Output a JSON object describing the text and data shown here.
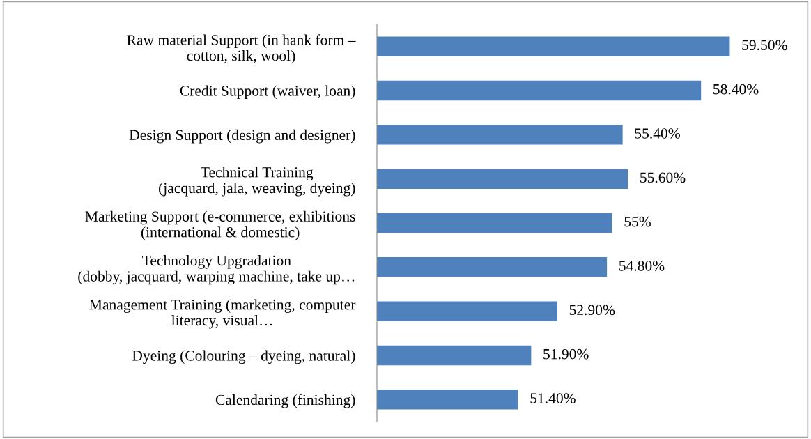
{
  "chart_data": {
    "type": "bar",
    "orientation": "horizontal",
    "categories": [
      "Raw material Support (in hank form –\ncotton, silk, wool)",
      "Credit Support (waiver, loan)",
      "Design Support (design and designer)",
      "Technical Training\n(jacquard, jala, weaving, dyeing)",
      "Marketing Support (e-commerce, exhibitions\n(international & domestic)",
      "Technology Upgradation\n(dobby, jacquard, warping machine, take up…",
      "Management Training (marketing, computer\nliteracy, visual…",
      "Dyeing (Colouring – dyeing, natural)",
      "Calendaring (finishing)"
    ],
    "values": [
      59.5,
      58.4,
      55.4,
      55.6,
      55,
      54.8,
      52.9,
      51.9,
      51.4
    ],
    "value_labels": [
      "59.50%",
      "58.40%",
      "55.40%",
      "55.60%",
      "55%",
      "54.80%",
      "52.90%",
      "51.90%",
      "51.40%"
    ],
    "color": "#4f81bd",
    "xlim": [
      46,
      62.5
    ],
    "tick_labels": "y",
    "grid": false,
    "legend": false
  }
}
